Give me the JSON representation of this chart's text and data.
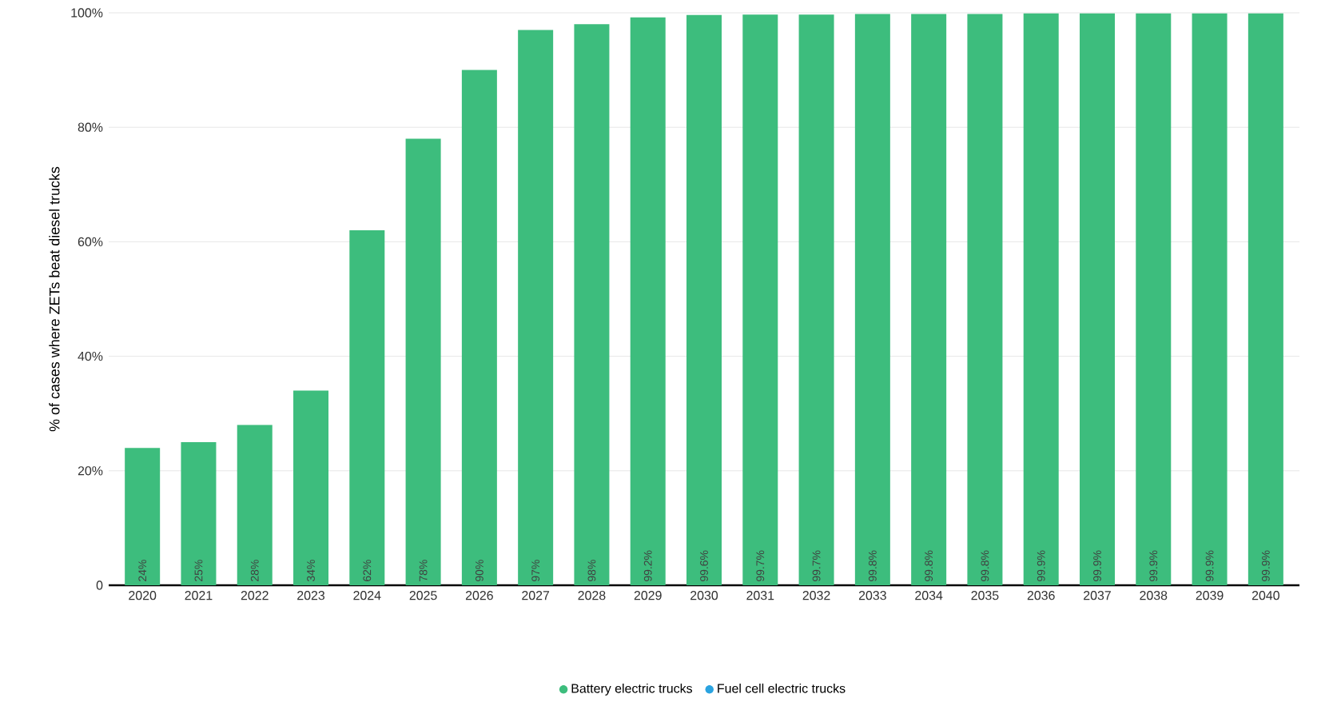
{
  "chart_data": {
    "type": "bar",
    "ylabel": "% of cases where ZETs beat diesel trucks",
    "categories": [
      "2020",
      "2021",
      "2022",
      "2023",
      "2024",
      "2025",
      "2026",
      "2027",
      "2028",
      "2029",
      "2030",
      "2031",
      "2032",
      "2033",
      "2034",
      "2035",
      "2036",
      "2037",
      "2038",
      "2039",
      "2040"
    ],
    "series": [
      {
        "name": "Battery electric trucks",
        "color": "#3dbd7d",
        "values": [
          24,
          25,
          28,
          34,
          62,
          78,
          90,
          97,
          98,
          99.2,
          99.6,
          99.7,
          99.7,
          99.8,
          99.8,
          99.8,
          99.9,
          99.9,
          99.9,
          99.9,
          99.9
        ],
        "value_labels": [
          "24%",
          "25%",
          "28%",
          "34%",
          "62%",
          "78%",
          "90%",
          "97%",
          "98%",
          "99.2%",
          "99.6%",
          "99.7%",
          "99.7%",
          "99.8%",
          "99.8%",
          "99.8%",
          "99.9%",
          "99.9%",
          "99.9%",
          "99.9%",
          "99.9%"
        ]
      },
      {
        "name": "Fuel cell electric trucks",
        "color": "#2aa3e0",
        "values": [
          null,
          null,
          null,
          null,
          null,
          null,
          null,
          null,
          null,
          null,
          null,
          null,
          null,
          null,
          null,
          null,
          null,
          null,
          null,
          null,
          null
        ]
      }
    ],
    "ylim": [
      0,
      100
    ],
    "yticks": [
      0,
      {
        "value": 20,
        "label": "20%"
      },
      {
        "value": 40,
        "label": "40%"
      },
      {
        "value": 60,
        "label": "60%"
      },
      {
        "value": 80,
        "label": "80%"
      },
      {
        "value": 100,
        "label": "100%"
      }
    ],
    "grid": "y",
    "legend": "bottom"
  }
}
